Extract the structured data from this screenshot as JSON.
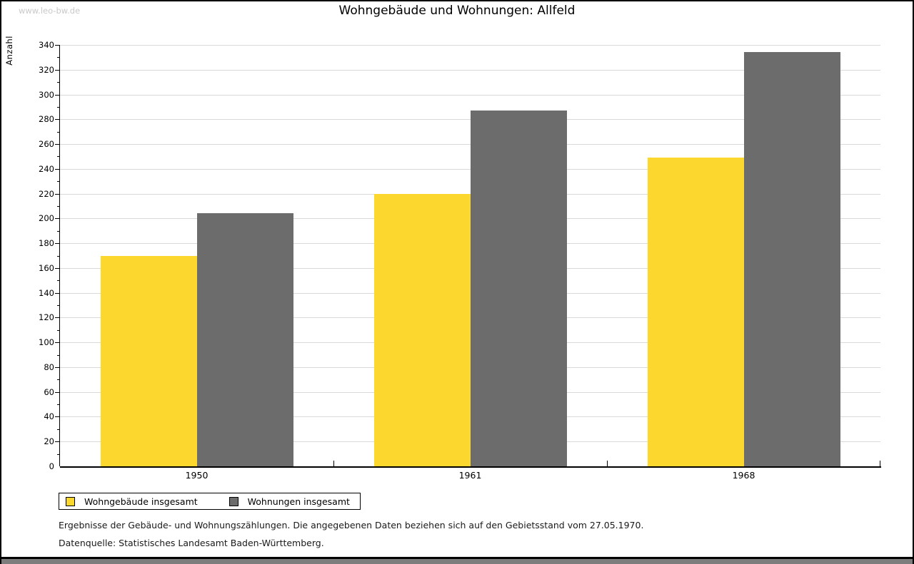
{
  "watermark": "www.leo-bw.de",
  "title": "Wohngebäude und Wohnungen: Allfeld",
  "chart_data": {
    "type": "bar",
    "title": "Wohngebäude und Wohnungen: Allfeld",
    "categories": [
      "1950",
      "1961",
      "1968"
    ],
    "series": [
      {
        "name": "Wohngebäude insgesamt",
        "values": [
          170,
          220,
          249
        ],
        "color": "#fcd72d"
      },
      {
        "name": "Wohnungen insgesamt",
        "values": [
          204,
          287,
          334
        ],
        "color": "#6c6c6c"
      }
    ],
    "xlabel": "",
    "ylabel": "Anzahl",
    "ylim": [
      0,
      340
    ],
    "ytick_major": 20,
    "ytick_minor": 10,
    "grid": true,
    "legend_position": "bottom-left"
  },
  "footnotes": {
    "line1": "Ergebnisse der Gebäude- und Wohnungszählungen. Die angegebenen Daten beziehen sich auf den Gebietsstand vom 27.05.1970.",
    "line2": "Datenquelle: Statistisches Landesamt Baden-Württemberg."
  },
  "colors": {
    "background": "#ffffff",
    "bar_yellow": "#fcd72d",
    "bar_gray": "#6c6c6c",
    "gridline": "#d9d9d9",
    "axis": "#000000",
    "watermark": "#c9c9c9",
    "window_edge": "#7d7d7d"
  }
}
